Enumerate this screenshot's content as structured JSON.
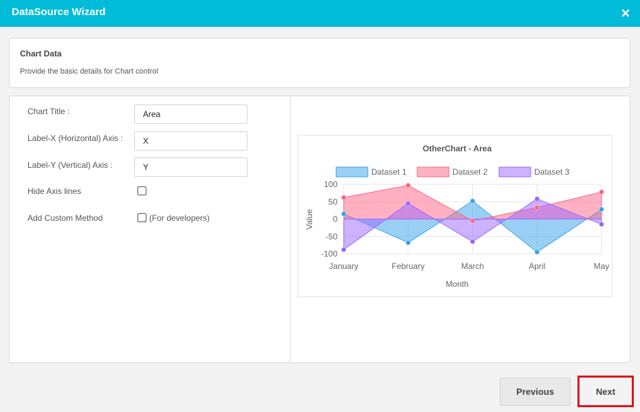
{
  "window": {
    "title": "DataSource Wizard"
  },
  "info": {
    "heading": "Chart Data",
    "description": "Provide the basic details for Chart control"
  },
  "form": {
    "chart_title_label": "Chart Title :",
    "chart_title_value": "Area",
    "label_x_label": "Label-X (Horizontal) Axis :",
    "label_x_value": "X",
    "label_y_label": "Label-Y (Vertical) Axis :",
    "label_y_value": "Y",
    "hide_axis_label": "Hide Axis lines",
    "custom_method_label": "Add Custom Method",
    "custom_method_note": "(For developers)"
  },
  "footer": {
    "previous_label": "Previous",
    "next_label": "Next"
  },
  "chart_data": {
    "type": "area",
    "title": "OtherChart - Area",
    "xlabel": "Month",
    "ylabel": "Value",
    "categories": [
      "January",
      "February",
      "March",
      "April",
      "May"
    ],
    "ylim": [
      -100,
      100
    ],
    "yticks": [
      100,
      50,
      0,
      -50,
      -100
    ],
    "legend_position": "top",
    "grid": true,
    "series": [
      {
        "name": "Dataset 1",
        "values": [
          15,
          -68,
          52,
          -95,
          28
        ],
        "color": "#36a2eb"
      },
      {
        "name": "Dataset 2",
        "values": [
          62,
          97,
          -5,
          33,
          78
        ],
        "color": "#ff6384"
      },
      {
        "name": "Dataset 3",
        "values": [
          -88,
          45,
          -65,
          58,
          -15
        ],
        "color": "#9966ff"
      }
    ]
  }
}
